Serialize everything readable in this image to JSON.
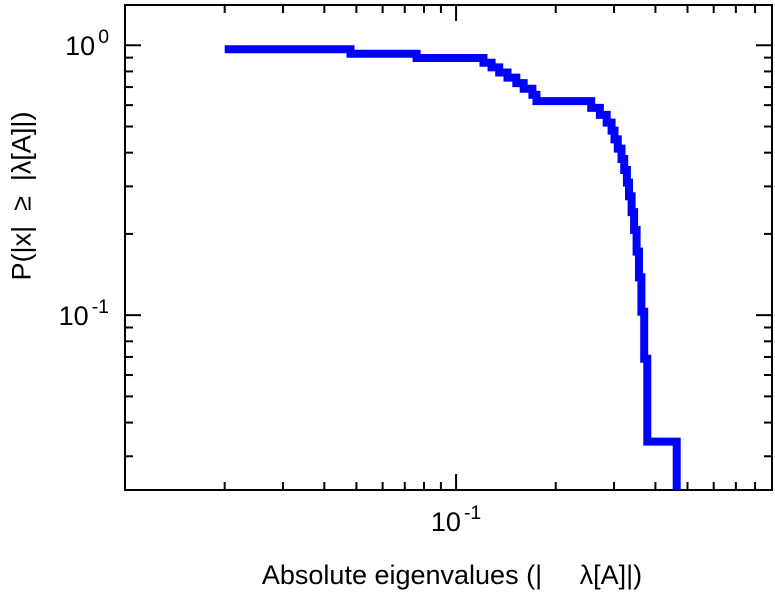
{
  "chart_data": {
    "type": "line",
    "subtype": "step-ccdf",
    "title": "",
    "xlabel": "Absolute eigenvalues (|     λ[A]|)",
    "ylabel": "P(|x|  ≥  |λ[A]|)",
    "xscale": "log",
    "yscale": "log",
    "xlim": [
      0.01,
      0.9
    ],
    "ylim": [
      0.0225,
      1.41
    ],
    "grid": false,
    "legend": false,
    "line_color": "#0000ff",
    "frame_color": "#000000",
    "background": "#ffffff",
    "x_ticks": [
      {
        "base": "10",
        "exp": "-1",
        "value": 0.1
      }
    ],
    "y_ticks": [
      {
        "base": "10",
        "exp": "0",
        "value": 1.0
      },
      {
        "base": "10",
        "exp": "-1",
        "value": 0.1
      }
    ],
    "steps": [
      [
        0.02,
        0.966
      ],
      [
        0.048,
        0.931
      ],
      [
        0.076,
        0.897
      ],
      [
        0.121,
        0.862
      ],
      [
        0.128,
        0.828
      ],
      [
        0.135,
        0.793
      ],
      [
        0.143,
        0.759
      ],
      [
        0.152,
        0.724
      ],
      [
        0.16,
        0.69
      ],
      [
        0.17,
        0.655
      ],
      [
        0.175,
        0.621
      ],
      [
        0.256,
        0.586
      ],
      [
        0.272,
        0.552
      ],
      [
        0.285,
        0.517
      ],
      [
        0.295,
        0.483
      ],
      [
        0.301,
        0.448
      ],
      [
        0.308,
        0.414
      ],
      [
        0.316,
        0.379
      ],
      [
        0.322,
        0.345
      ],
      [
        0.328,
        0.31
      ],
      [
        0.333,
        0.276
      ],
      [
        0.339,
        0.241
      ],
      [
        0.345,
        0.207
      ],
      [
        0.351,
        0.172
      ],
      [
        0.357,
        0.138
      ],
      [
        0.363,
        0.103
      ],
      [
        0.37,
        0.069
      ],
      [
        0.378,
        0.034
      ],
      [
        0.464,
        0.002
      ]
    ]
  }
}
